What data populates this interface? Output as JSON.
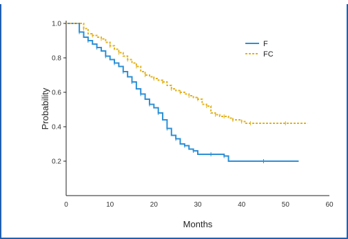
{
  "chart_data": {
    "type": "line",
    "title": "",
    "xlabel": "Months",
    "ylabel": "Probability",
    "xlim": [
      0,
      60
    ],
    "ylim": [
      0,
      1.0
    ],
    "x_ticks": [
      "0",
      "10",
      "20",
      "30",
      "40",
      "50",
      "60"
    ],
    "y_ticks": [
      "0.2",
      "0.4",
      "0.6",
      "0.8",
      "1.0"
    ],
    "legend_position": "top-right",
    "grid": false,
    "series": [
      {
        "name": "F",
        "color": "#2b8fd6",
        "style": "solid",
        "points": [
          [
            0,
            1.0
          ],
          [
            2,
            1.0
          ],
          [
            3,
            0.95
          ],
          [
            4,
            0.92
          ],
          [
            5,
            0.9
          ],
          [
            6,
            0.88
          ],
          [
            7,
            0.86
          ],
          [
            8,
            0.84
          ],
          [
            9,
            0.81
          ],
          [
            10,
            0.79
          ],
          [
            11,
            0.77
          ],
          [
            12,
            0.75
          ],
          [
            13,
            0.72
          ],
          [
            14,
            0.69
          ],
          [
            15,
            0.66
          ],
          [
            16,
            0.62
          ],
          [
            17,
            0.59
          ],
          [
            18,
            0.56
          ],
          [
            19,
            0.53
          ],
          [
            20,
            0.51
          ],
          [
            21,
            0.48
          ],
          [
            22,
            0.44
          ],
          [
            23,
            0.39
          ],
          [
            24,
            0.35
          ],
          [
            25,
            0.33
          ],
          [
            26,
            0.3
          ],
          [
            27,
            0.29
          ],
          [
            28,
            0.27
          ],
          [
            29,
            0.26
          ],
          [
            30,
            0.24
          ],
          [
            33,
            0.24
          ],
          [
            35,
            0.24
          ],
          [
            36,
            0.23
          ],
          [
            37,
            0.2
          ],
          [
            45,
            0.2
          ],
          [
            53,
            0.2
          ]
        ]
      },
      {
        "name": "FC",
        "color": "#e2b21c",
        "style": "dashed",
        "points": [
          [
            0,
            1.0
          ],
          [
            3,
            1.0
          ],
          [
            4,
            0.97
          ],
          [
            5,
            0.94
          ],
          [
            6,
            0.93
          ],
          [
            7,
            0.92
          ],
          [
            8,
            0.91
          ],
          [
            9,
            0.89
          ],
          [
            10,
            0.87
          ],
          [
            11,
            0.85
          ],
          [
            12,
            0.83
          ],
          [
            13,
            0.81
          ],
          [
            14,
            0.79
          ],
          [
            15,
            0.77
          ],
          [
            16,
            0.75
          ],
          [
            17,
            0.72
          ],
          [
            18,
            0.7
          ],
          [
            19,
            0.69
          ],
          [
            20,
            0.68
          ],
          [
            21,
            0.67
          ],
          [
            22,
            0.66
          ],
          [
            23,
            0.64
          ],
          [
            24,
            0.62
          ],
          [
            25,
            0.61
          ],
          [
            26,
            0.6
          ],
          [
            27,
            0.59
          ],
          [
            28,
            0.58
          ],
          [
            29,
            0.57
          ],
          [
            30,
            0.56
          ],
          [
            31,
            0.53
          ],
          [
            32,
            0.52
          ],
          [
            33,
            0.48
          ],
          [
            34,
            0.47
          ],
          [
            35,
            0.46
          ],
          [
            36,
            0.46
          ],
          [
            37,
            0.45
          ],
          [
            38,
            0.44
          ],
          [
            39,
            0.44
          ],
          [
            40,
            0.43
          ],
          [
            41,
            0.42
          ],
          [
            42,
            0.42
          ],
          [
            45,
            0.42
          ],
          [
            50,
            0.42
          ],
          [
            55,
            0.42
          ]
        ]
      }
    ]
  }
}
